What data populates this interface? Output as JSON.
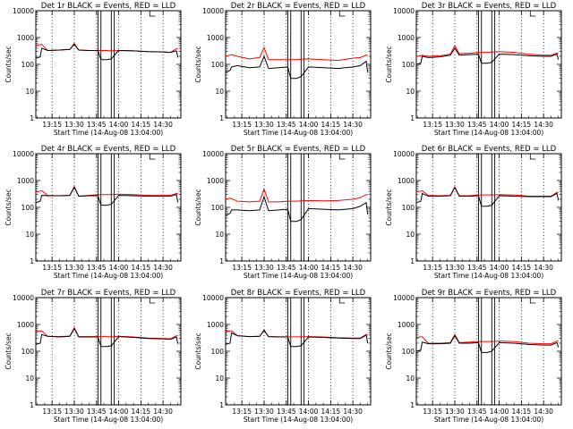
{
  "figure": {
    "xlabel": "Start Time (14-Aug-08 13:04:00)",
    "ylabel": "Counts/sec",
    "yticks": [
      "1",
      "10",
      "100",
      "1000",
      "10000"
    ],
    "xticks": [
      "13:15",
      "13:30",
      "13:45",
      "14:00",
      "14:15",
      "14:30"
    ],
    "colors": {
      "events": "#000000",
      "lld": "#ff0000",
      "axes": "#000000",
      "dotted": "#000000"
    }
  },
  "chart_data": [
    {
      "type": "line",
      "title": "Det 1r BLACK = Events, RED = LLD",
      "xlabel": "Start Time (14-Aug-08 13:04:00)",
      "ylabel": "Counts/sec",
      "ylim": [
        1,
        10000
      ],
      "yscale": "log",
      "xlim": [
        "13:04",
        "14:42"
      ],
      "x": [
        "13:04",
        "13:07",
        "13:08",
        "13:12",
        "13:20",
        "13:27",
        "13:30",
        "13:33",
        "13:40",
        "13:46",
        "13:48",
        "13:52",
        "13:55",
        "14:00",
        "14:10",
        "14:20",
        "14:30",
        "14:35",
        "14:39",
        "14:40"
      ],
      "series": [
        {
          "name": "Events",
          "values": [
            170,
            190,
            400,
            330,
            340,
            360,
            560,
            340,
            330,
            330,
            150,
            150,
            160,
            330,
            320,
            300,
            290,
            280,
            320,
            180
          ]
        },
        {
          "name": "LLD",
          "values": [
            520,
            540,
            560,
            330,
            340,
            360,
            600,
            340,
            330,
            330,
            330,
            330,
            320,
            330,
            320,
            300,
            290,
            280,
            380,
            380
          ]
        }
      ]
    },
    {
      "type": "line",
      "title": "Det 2r BLACK = Events, RED = LLD",
      "xlabel": "Start Time (14-Aug-08 13:04:00)",
      "ylabel": "Counts/sec",
      "ylim": [
        1,
        10000
      ],
      "yscale": "log",
      "xlim": [
        "13:04",
        "14:42"
      ],
      "x": [
        "13:04",
        "13:07",
        "13:08",
        "13:12",
        "13:20",
        "13:27",
        "13:30",
        "13:33",
        "13:40",
        "13:46",
        "13:48",
        "13:52",
        "13:55",
        "14:00",
        "14:10",
        "14:20",
        "14:30",
        "14:35",
        "14:39",
        "14:40"
      ],
      "series": [
        {
          "name": "Events",
          "values": [
            50,
            60,
            80,
            90,
            75,
            80,
            200,
            70,
            75,
            80,
            30,
            30,
            35,
            80,
            75,
            70,
            80,
            90,
            130,
            50
          ]
        },
        {
          "name": "LLD",
          "values": [
            200,
            220,
            230,
            200,
            160,
            180,
            420,
            150,
            150,
            150,
            150,
            150,
            155,
            160,
            150,
            140,
            170,
            180,
            220,
            220
          ]
        }
      ]
    },
    {
      "type": "line",
      "title": "Det 3r BLACK = Events, RED = LLD",
      "xlabel": "Start Time (14-Aug-08 13:04:00)",
      "ylabel": "Counts/sec",
      "ylim": [
        1,
        10000
      ],
      "yscale": "log",
      "xlim": [
        "13:04",
        "14:42"
      ],
      "x": [
        "13:04",
        "13:07",
        "13:08",
        "13:12",
        "13:20",
        "13:27",
        "13:30",
        "13:33",
        "13:40",
        "13:46",
        "13:48",
        "13:52",
        "13:55",
        "14:00",
        "14:10",
        "14:20",
        "14:30",
        "14:35",
        "14:39",
        "14:40"
      ],
      "series": [
        {
          "name": "Events",
          "values": [
            100,
            110,
            200,
            180,
            190,
            220,
            400,
            220,
            230,
            240,
            110,
            110,
            120,
            240,
            230,
            210,
            200,
            200,
            240,
            150
          ]
        },
        {
          "name": "LLD",
          "values": [
            200,
            210,
            220,
            200,
            210,
            240,
            500,
            250,
            260,
            280,
            280,
            280,
            290,
            300,
            280,
            240,
            220,
            220,
            260,
            260
          ]
        }
      ]
    },
    {
      "type": "line",
      "title": "Det 4r BLACK = Events, RED = LLD",
      "xlabel": "Start Time (14-Aug-08 13:04:00)",
      "ylabel": "Counts/sec",
      "ylim": [
        1,
        10000
      ],
      "yscale": "log",
      "xlim": [
        "13:04",
        "14:42"
      ],
      "x": [
        "13:04",
        "13:07",
        "13:08",
        "13:12",
        "13:20",
        "13:27",
        "13:30",
        "13:33",
        "13:40",
        "13:46",
        "13:48",
        "13:52",
        "13:55",
        "14:00",
        "14:10",
        "14:20",
        "14:30",
        "14:35",
        "14:39",
        "14:40"
      ],
      "series": [
        {
          "name": "Events",
          "values": [
            150,
            170,
            280,
            270,
            270,
            280,
            560,
            260,
            270,
            270,
            120,
            120,
            130,
            280,
            270,
            260,
            260,
            260,
            300,
            150
          ]
        },
        {
          "name": "LLD",
          "values": [
            380,
            400,
            420,
            280,
            270,
            280,
            600,
            260,
            280,
            300,
            300,
            300,
            300,
            310,
            300,
            280,
            280,
            280,
            330,
            330
          ]
        }
      ]
    },
    {
      "type": "line",
      "title": "Det 5r BLACK = Events, RED = LLD",
      "xlabel": "Start Time (14-Aug-08 13:04:00)",
      "ylabel": "Counts/sec",
      "ylim": [
        1,
        10000
      ],
      "yscale": "log",
      "xlim": [
        "13:04",
        "14:42"
      ],
      "x": [
        "13:04",
        "13:07",
        "13:08",
        "13:12",
        "13:20",
        "13:27",
        "13:30",
        "13:33",
        "13:40",
        "13:46",
        "13:48",
        "13:52",
        "13:55",
        "14:00",
        "14:10",
        "14:20",
        "14:30",
        "14:35",
        "14:39",
        "14:40"
      ],
      "series": [
        {
          "name": "Events",
          "values": [
            50,
            60,
            80,
            80,
            75,
            80,
            250,
            75,
            80,
            85,
            30,
            30,
            35,
            90,
            85,
            80,
            90,
            110,
            150,
            55
          ]
        },
        {
          "name": "LLD",
          "values": [
            200,
            220,
            210,
            170,
            160,
            170,
            480,
            160,
            160,
            170,
            170,
            170,
            175,
            180,
            175,
            180,
            200,
            230,
            300,
            300
          ]
        }
      ]
    },
    {
      "type": "line",
      "title": "Det 6r BLACK = Events, RED = LLD",
      "xlabel": "Start Time (14-Aug-08 13:04:00)",
      "ylabel": "Counts/sec",
      "ylim": [
        1,
        10000
      ],
      "yscale": "log",
      "xlim": [
        "13:04",
        "14:42"
      ],
      "x": [
        "13:04",
        "13:07",
        "13:08",
        "13:12",
        "13:20",
        "13:27",
        "13:30",
        "13:33",
        "13:40",
        "13:46",
        "13:48",
        "13:52",
        "13:55",
        "14:00",
        "14:10",
        "14:20",
        "14:30",
        "14:35",
        "14:39",
        "14:40"
      ],
      "series": [
        {
          "name": "Events",
          "values": [
            150,
            170,
            330,
            260,
            260,
            270,
            550,
            260,
            260,
            270,
            110,
            110,
            120,
            270,
            260,
            250,
            250,
            250,
            330,
            180
          ]
        },
        {
          "name": "LLD",
          "values": [
            380,
            400,
            420,
            280,
            270,
            280,
            580,
            270,
            270,
            290,
            290,
            290,
            290,
            300,
            290,
            260,
            260,
            260,
            360,
            360
          ]
        }
      ]
    },
    {
      "type": "line",
      "title": "Det 7r BLACK = Events, RED = LLD",
      "xlabel": "Start Time (14-Aug-08 13:04:00)",
      "ylabel": "Counts/sec",
      "ylim": [
        1,
        10000
      ],
      "yscale": "log",
      "xlim": [
        "13:04",
        "14:42"
      ],
      "x": [
        "13:04",
        "13:07",
        "13:08",
        "13:12",
        "13:20",
        "13:27",
        "13:30",
        "13:33",
        "13:40",
        "13:46",
        "13:48",
        "13:52",
        "13:55",
        "14:00",
        "14:10",
        "14:20",
        "14:30",
        "14:35",
        "14:39",
        "14:40"
      ],
      "series": [
        {
          "name": "Events",
          "values": [
            180,
            200,
            420,
            360,
            340,
            360,
            700,
            340,
            340,
            340,
            150,
            150,
            160,
            350,
            330,
            300,
            290,
            280,
            340,
            190
          ]
        },
        {
          "name": "LLD",
          "values": [
            540,
            560,
            580,
            360,
            350,
            370,
            750,
            350,
            350,
            350,
            350,
            350,
            345,
            360,
            340,
            310,
            300,
            290,
            380,
            380
          ]
        }
      ]
    },
    {
      "type": "line",
      "title": "Det 8r BLACK = Events, RED = LLD",
      "xlabel": "Start Time (14-Aug-08 13:04:00)",
      "ylabel": "Counts/sec",
      "ylim": [
        1,
        10000
      ],
      "yscale": "log",
      "xlim": [
        "13:04",
        "14:42"
      ],
      "x": [
        "13:04",
        "13:07",
        "13:08",
        "13:12",
        "13:20",
        "13:27",
        "13:30",
        "13:33",
        "13:40",
        "13:46",
        "13:48",
        "13:52",
        "13:55",
        "14:00",
        "14:10",
        "14:20",
        "14:30",
        "14:35",
        "14:39",
        "14:40"
      ],
      "series": [
        {
          "name": "Events",
          "values": [
            180,
            200,
            480,
            380,
            350,
            360,
            600,
            350,
            340,
            340,
            150,
            150,
            160,
            340,
            330,
            310,
            300,
            300,
            400,
            200
          ]
        },
        {
          "name": "LLD",
          "values": [
            550,
            570,
            580,
            380,
            350,
            360,
            620,
            350,
            345,
            345,
            345,
            345,
            345,
            350,
            340,
            320,
            310,
            310,
            420,
            420
          ]
        }
      ]
    },
    {
      "type": "line",
      "title": "Det 9r BLACK = Events, RED = LLD",
      "xlabel": "Start Time (14-Aug-08 13:04:00)",
      "ylabel": "Counts/sec",
      "ylim": [
        1,
        10000
      ],
      "yscale": "log",
      "xlim": [
        "13:04",
        "14:42"
      ],
      "x": [
        "13:04",
        "13:07",
        "13:08",
        "13:12",
        "13:20",
        "13:27",
        "13:30",
        "13:33",
        "13:40",
        "13:46",
        "13:48",
        "13:52",
        "13:55",
        "14:00",
        "14:10",
        "14:20",
        "14:30",
        "14:35",
        "14:39",
        "14:40"
      ],
      "series": [
        {
          "name": "Events",
          "values": [
            100,
            110,
            220,
            190,
            190,
            200,
            380,
            200,
            200,
            210,
            90,
            90,
            100,
            210,
            200,
            180,
            170,
            170,
            210,
            140
          ]
        },
        {
          "name": "LLD",
          "values": [
            330,
            340,
            350,
            200,
            200,
            210,
            420,
            210,
            220,
            230,
            230,
            230,
            230,
            240,
            230,
            200,
            190,
            190,
            240,
            240
          ]
        }
      ]
    }
  ]
}
